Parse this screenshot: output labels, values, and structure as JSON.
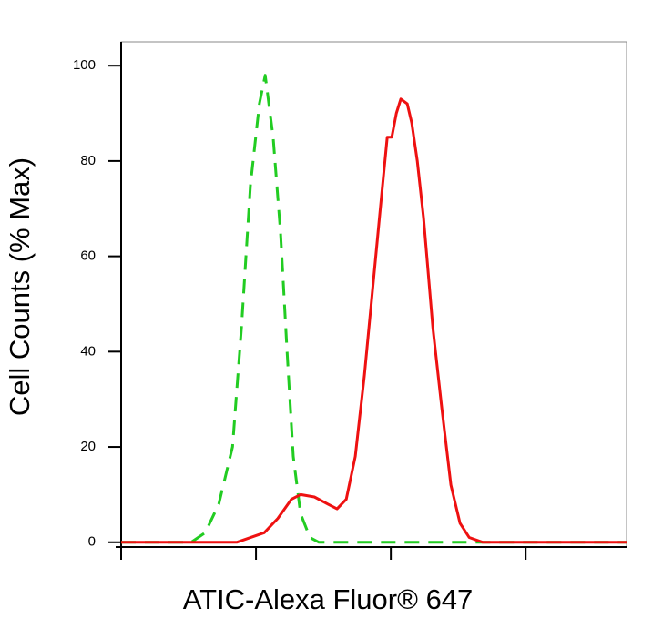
{
  "chart_data": {
    "type": "line",
    "xlabel": "ATIC-Alexa Fluor® 647",
    "ylabel": "Cell Counts (% Max)",
    "xscale": "log",
    "xlim": [
      1,
      5600
    ],
    "xticks": [
      1,
      10,
      100,
      1000
    ],
    "ylim": [
      -1,
      105
    ],
    "yticks": [
      0,
      20,
      40,
      60,
      80,
      100
    ],
    "series": [
      {
        "color": "#22cc22",
        "dashed": true,
        "x": [
          1,
          3.3,
          4.2,
          5.3,
          6.7,
          7.8,
          9.1,
          10.6,
          11.7,
          13.4,
          15.2,
          17.0,
          18.9,
          21.4,
          25.1,
          29.3,
          5600
        ],
        "values": [
          0,
          0,
          2,
          8,
          20,
          45,
          75,
          92,
          98,
          85,
          65,
          40,
          18,
          6,
          1,
          0,
          0
        ]
      },
      {
        "color": "#ee1111",
        "dashed": false,
        "x": [
          1,
          7.2,
          11.5,
          14.5,
          18.3,
          21.4,
          27.1,
          34.2,
          39.9,
          46.7,
          54.5,
          63.7,
          74.4,
          86.9,
          94,
          101.6,
          109.9,
          118.6,
          132.4,
          143,
          157,
          175,
          205,
          239,
          279,
          326,
          381,
          481,
          5600
        ],
        "values": [
          0,
          0,
          2,
          5,
          9,
          10,
          9.5,
          8,
          7,
          9,
          18,
          35,
          55,
          75,
          85,
          85,
          90,
          93,
          92,
          88,
          80,
          68,
          45,
          28,
          12,
          4,
          1,
          0,
          0
        ]
      }
    ]
  }
}
